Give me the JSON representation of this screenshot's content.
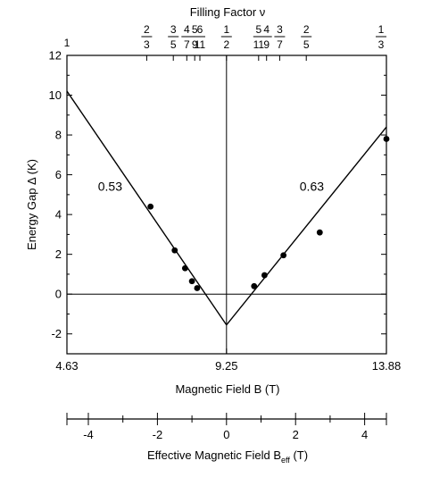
{
  "chart_data": {
    "type": "scatter",
    "title": "Filling Factor ν",
    "xlabel": "Magnetic Field B (T)",
    "ylabel": "Energy Gap Δ (K)",
    "xlim": [
      4.63,
      13.88
    ],
    "ylim": [
      -3,
      12
    ],
    "x_ticks": [
      "4.63",
      "9.25",
      "13.88"
    ],
    "y_ticks": [
      "-2",
      "0",
      "2",
      "4",
      "6",
      "8",
      "10",
      "12"
    ],
    "filling_factor_axis": {
      "end_labels": [
        {
          "label": "1",
          "x": 4.63
        },
        {
          "label": "1/3",
          "x": 13.88
        }
      ],
      "ticks": [
        {
          "num": "2",
          "den": "3",
          "x": 6.94
        },
        {
          "num": "3",
          "den": "5",
          "x": 7.71
        },
        {
          "num": "4",
          "den": "7",
          "x": 8.1
        },
        {
          "num": "5",
          "den": "9",
          "x": 8.33
        },
        {
          "num": "6",
          "den": "11",
          "x": 8.48
        },
        {
          "num": "1",
          "den": "2",
          "x": 9.25
        },
        {
          "num": "5",
          "den": "11",
          "x": 10.18
        },
        {
          "num": "4",
          "den": "9",
          "x": 10.41
        },
        {
          "num": "3",
          "den": "7",
          "x": 10.79
        },
        {
          "num": "2",
          "den": "5",
          "x": 11.56
        }
      ]
    },
    "series": [
      {
        "side": "left",
        "points": [
          {
            "x": 7.05,
            "y": 4.4
          },
          {
            "x": 7.75,
            "y": 2.2
          },
          {
            "x": 8.05,
            "y": 1.3
          },
          {
            "x": 8.25,
            "y": 0.65
          },
          {
            "x": 8.4,
            "y": 0.3
          }
        ],
        "fit_line": [
          [
            4.63,
            10.2
          ],
          [
            9.25,
            -1.55
          ]
        ],
        "annotation": {
          "text": "0.53",
          "x": 5.88,
          "y": 5.2
        }
      },
      {
        "side": "right",
        "points": [
          {
            "x": 10.05,
            "y": 0.4
          },
          {
            "x": 10.35,
            "y": 0.95
          },
          {
            "x": 10.9,
            "y": 1.95
          },
          {
            "x": 11.95,
            "y": 3.1
          },
          {
            "x": 13.88,
            "y": 7.8
          }
        ],
        "fit_line": [
          [
            9.25,
            -1.55
          ],
          [
            13.88,
            8.4
          ]
        ],
        "annotation": {
          "text": "0.63",
          "x": 11.72,
          "y": 5.2
        }
      }
    ],
    "effective_field_axis": {
      "label": "Effective Magnetic Field B",
      "label_sub": "eff",
      "label_unit": " (T)",
      "xlim": [
        -4.62,
        4.63
      ],
      "ticks": [
        "-4",
        "-2",
        "0",
        "2",
        "4"
      ]
    }
  }
}
